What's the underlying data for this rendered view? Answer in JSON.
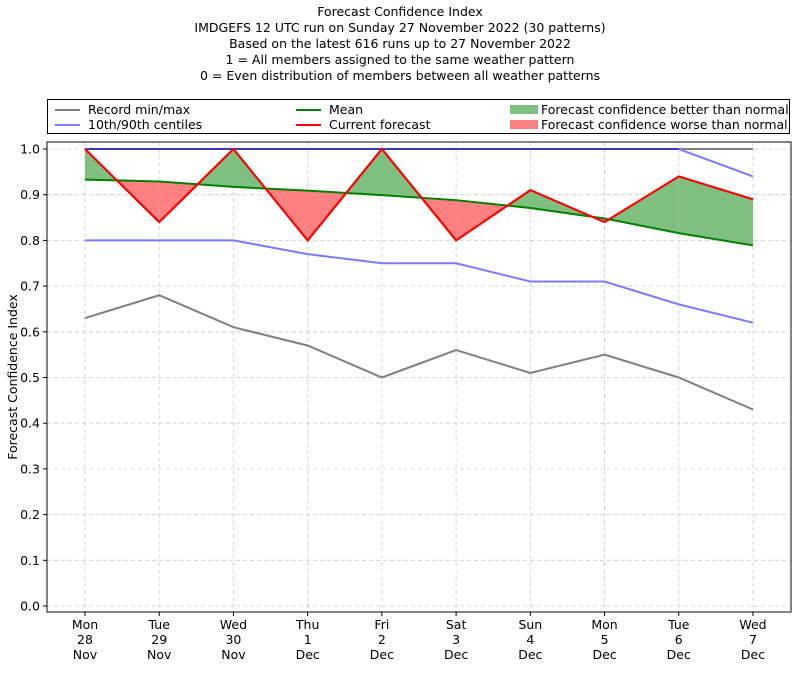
{
  "chart_data": {
    "type": "line",
    "title": "Forecast Confidence Index",
    "subtitle_lines": [
      "IMDGEFS 12 UTC run on Sunday 27 November 2022 (30 patterns)",
      "Based on the latest 616 runs up to 27 November 2022",
      "1 = All members assigned to the same weather pattern",
      "0 = Even distribution of members between all weather patterns"
    ],
    "xlabel": "",
    "ylabel": "Forecast Confidence Index",
    "ylim": [
      0.0,
      1.0
    ],
    "yticks": [
      "0.0",
      "0.1",
      "0.2",
      "0.3",
      "0.4",
      "0.5",
      "0.6",
      "0.7",
      "0.8",
      "0.9",
      "1.0"
    ],
    "grid": true,
    "legend_placement": "top (above plot)",
    "categories": [
      {
        "day": "Mon",
        "date": "28",
        "month": "Nov"
      },
      {
        "day": "Tue",
        "date": "29",
        "month": "Nov"
      },
      {
        "day": "Wed",
        "date": "30",
        "month": "Nov"
      },
      {
        "day": "Thu",
        "date": "1",
        "month": "Dec"
      },
      {
        "day": "Fri",
        "date": "2",
        "month": "Dec"
      },
      {
        "day": "Sat",
        "date": "3",
        "month": "Dec"
      },
      {
        "day": "Sun",
        "date": "4",
        "month": "Dec"
      },
      {
        "day": "Mon",
        "date": "5",
        "month": "Dec"
      },
      {
        "day": "Tue",
        "date": "6",
        "month": "Dec"
      },
      {
        "day": "Wed",
        "date": "7",
        "month": "Dec"
      }
    ],
    "series": [
      {
        "name": "Record max",
        "color": "#808080",
        "values": [
          1.0,
          1.0,
          1.0,
          1.0,
          1.0,
          1.0,
          1.0,
          1.0,
          1.0,
          1.0
        ]
      },
      {
        "name": "Record min",
        "color": "#808080",
        "values": [
          0.63,
          0.68,
          0.61,
          0.57,
          0.5,
          0.56,
          0.51,
          0.55,
          0.5,
          0.43
        ]
      },
      {
        "name": "90th centile",
        "color": "#7b7bff",
        "values": [
          1.0,
          1.0,
          1.0,
          1.0,
          1.0,
          1.0,
          1.0,
          1.0,
          1.0,
          0.94
        ]
      },
      {
        "name": "10th centile",
        "color": "#7b7bff",
        "values": [
          0.8,
          0.8,
          0.8,
          0.77,
          0.75,
          0.75,
          0.71,
          0.71,
          0.66,
          0.62
        ]
      },
      {
        "name": "Mean",
        "color": "#008000",
        "values": [
          0.933,
          0.929,
          0.917,
          0.909,
          0.899,
          0.888,
          0.871,
          0.848,
          0.816,
          0.789
        ]
      },
      {
        "name": "Current forecast",
        "color": "#ff0000",
        "values": [
          1.0,
          0.84,
          1.0,
          0.8,
          1.0,
          0.8,
          0.91,
          0.84,
          0.94,
          0.89
        ]
      }
    ],
    "fill_better_color": "#7fbf7f",
    "fill_worse_color": "#ff8080"
  },
  "legend": {
    "record": "Record min/max",
    "centiles": "10th/90th centiles",
    "mean": "Mean",
    "current": "Current forecast",
    "better": "Forecast confidence better than normal",
    "worse": "Forecast confidence worse than normal"
  }
}
